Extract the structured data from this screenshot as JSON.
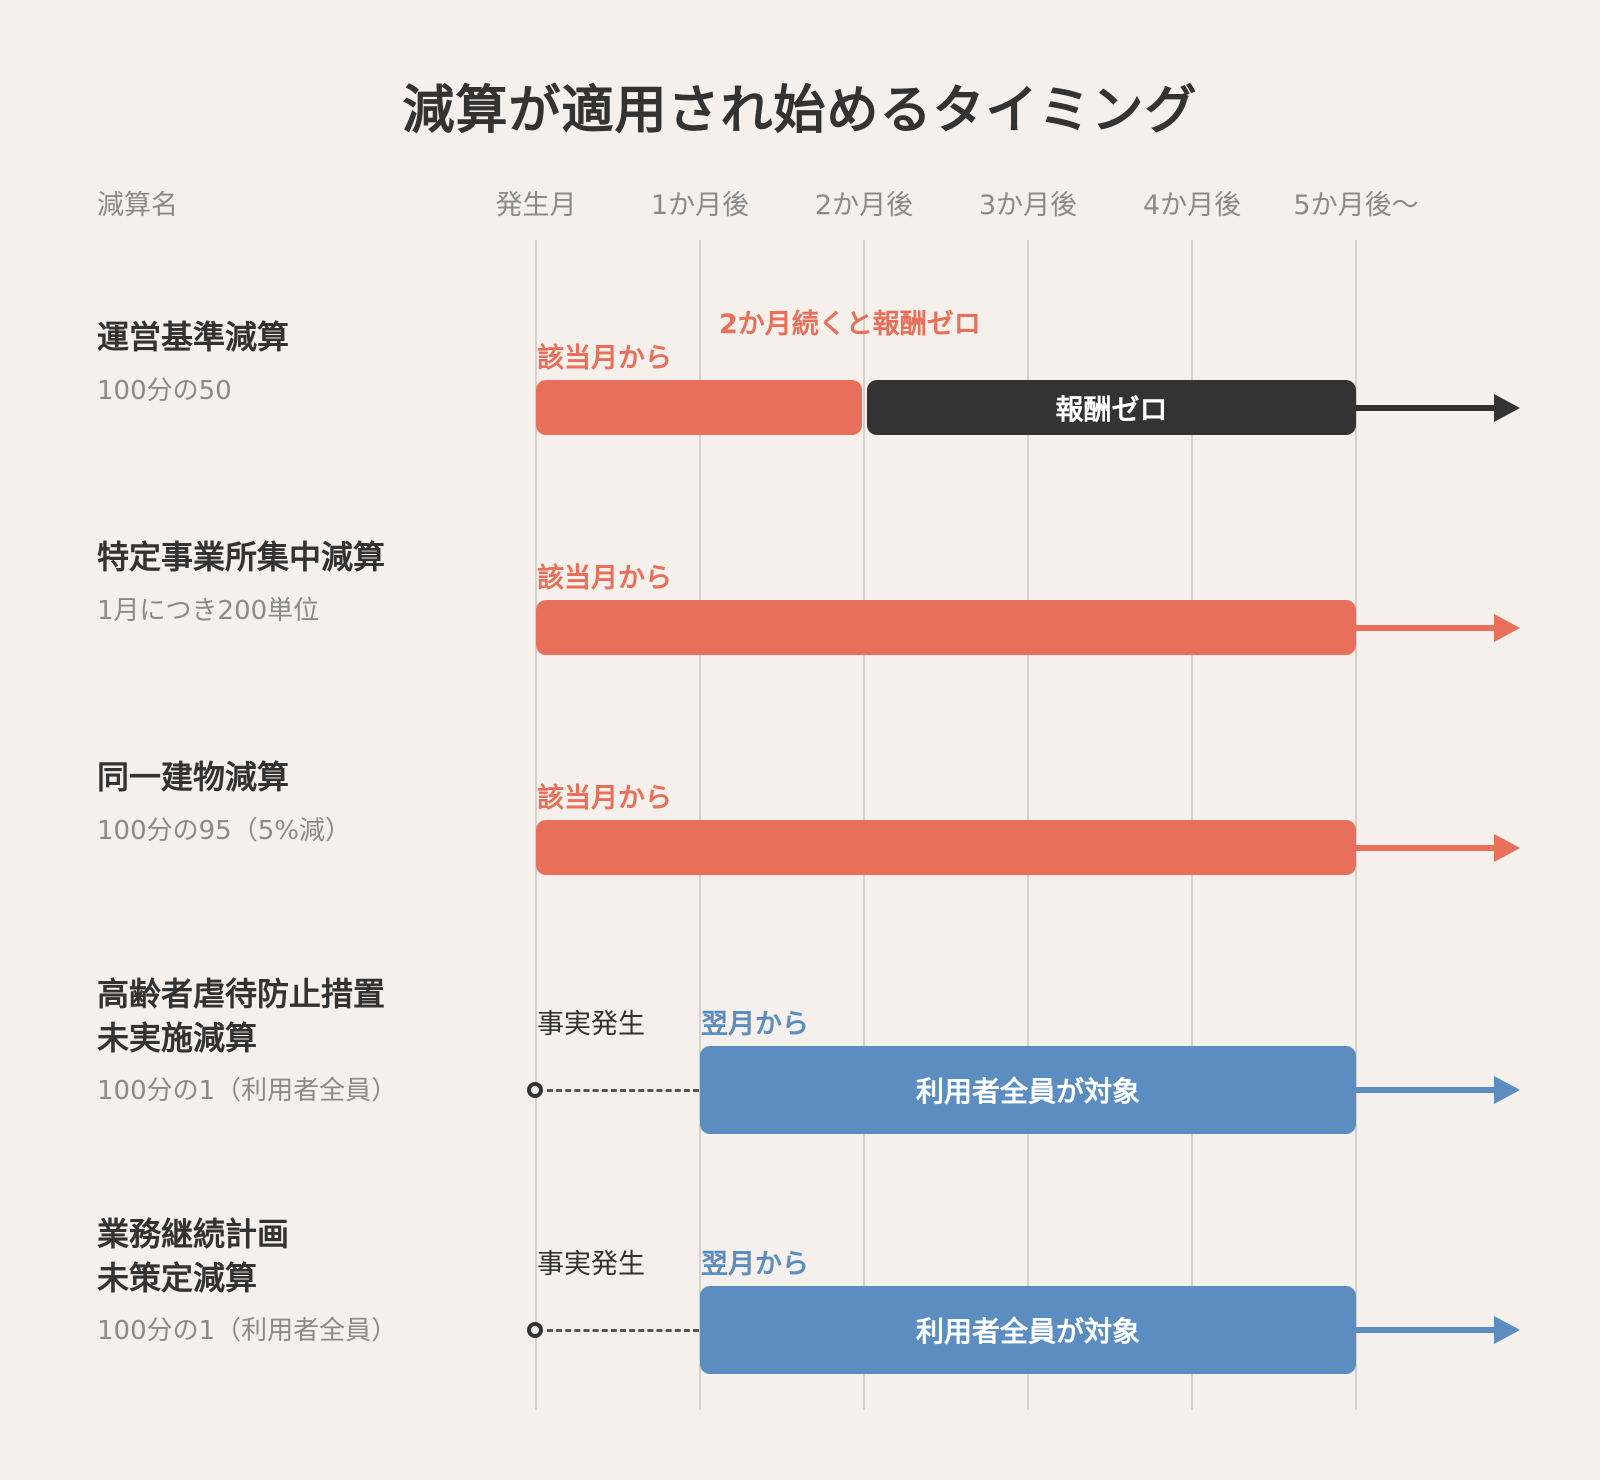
{
  "title": "減算が適用され始めるタイミング",
  "header": {
    "name_col": "減算名",
    "timeline": [
      "発生月",
      "1か月後",
      "2か月後",
      "3か月後",
      "4か月後",
      "5か月後〜"
    ]
  },
  "colors": {
    "background": "#f5f0eb",
    "red": "#e8705a",
    "dark": "#333333",
    "blue": "#5b8dc0",
    "gridline": "#d6d1cc"
  },
  "rows": [
    {
      "name": "運営基準減算",
      "sub": "100分の50",
      "start_label": "該当月から",
      "note": "2か月続くと報酬ゼロ",
      "bar_dark_label": "報酬ゼロ"
    },
    {
      "name": "特定事業所集中減算",
      "sub": "1月につき200単位",
      "start_label": "該当月から"
    },
    {
      "name": "同一建物減算",
      "sub": "100分の95（5%減）",
      "start_label": "該当月から"
    },
    {
      "name_line1": "高齢者虐待防止措置",
      "name_line2": "未実施減算",
      "sub": "100分の1（利用者全員）",
      "event_label": "事実発生",
      "start_label": "翌月から",
      "bar_label": "利用者全員が対象"
    },
    {
      "name_line1": "業務継続計画",
      "name_line2": "未策定減算",
      "sub": "100分の1（利用者全員）",
      "event_label": "事実発生",
      "start_label": "翌月から",
      "bar_label": "利用者全員が対象"
    }
  ]
}
